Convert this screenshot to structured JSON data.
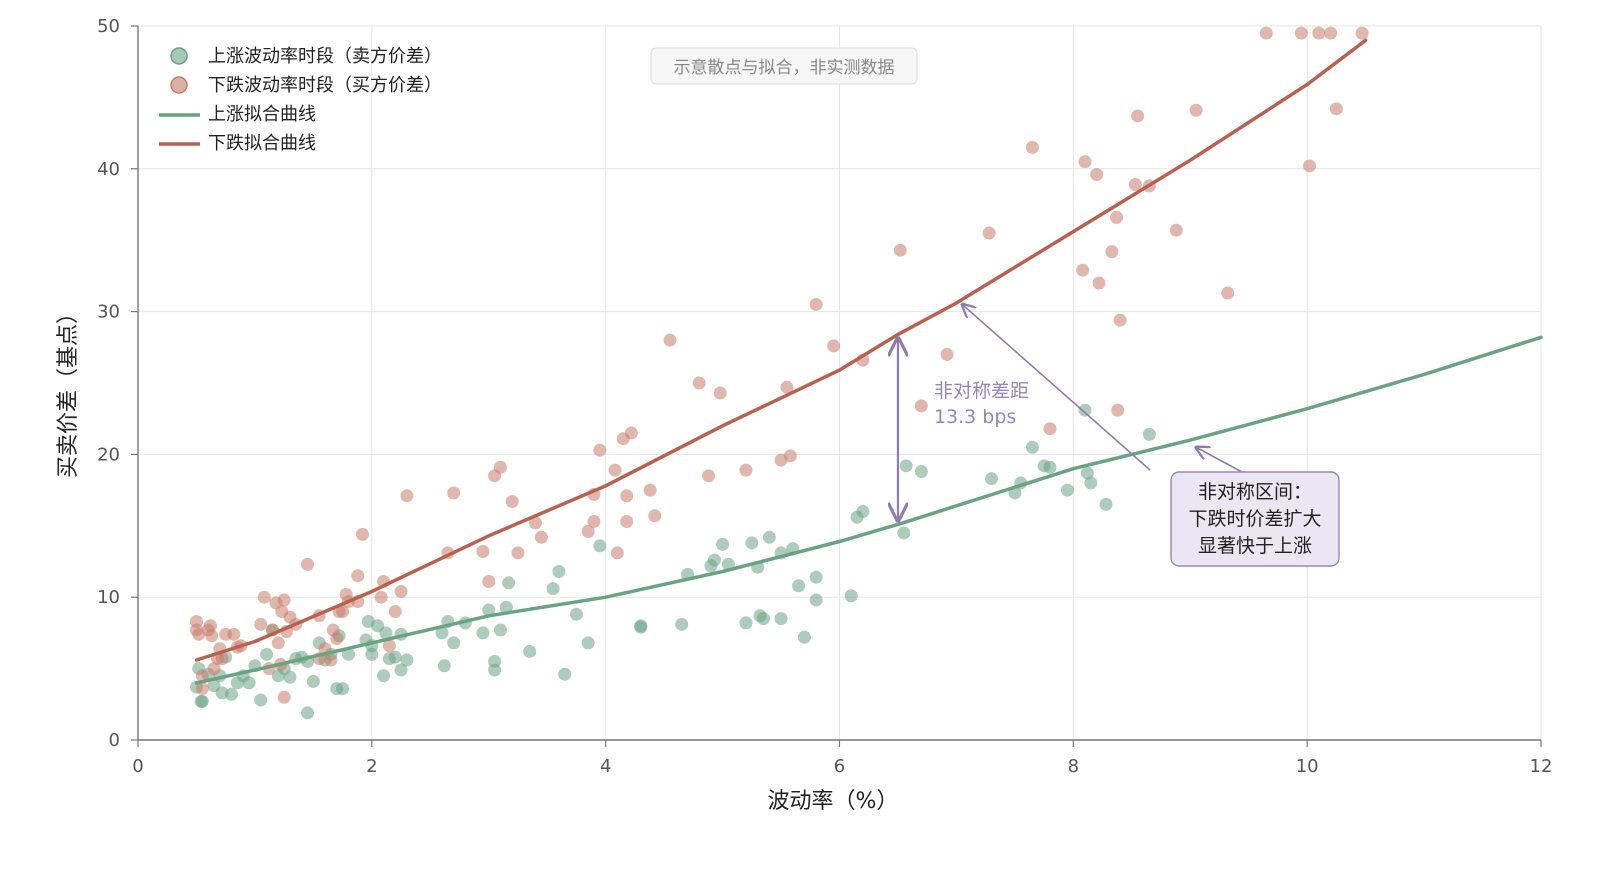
{
  "chart_data": {
    "type": "scatter",
    "title": "",
    "xlabel": "波动率（%）",
    "ylabel": "买卖价差（基点）",
    "xlim": [
      0,
      12
    ],
    "ylim": [
      0,
      50
    ],
    "x_ticks": [
      0,
      2,
      4,
      6,
      8,
      10,
      12
    ],
    "y_ticks": [
      0,
      10,
      20,
      30,
      40,
      50
    ],
    "grid": true,
    "legend_position": "top-left",
    "note": "示意散点与拟合，非实测数据",
    "series": [
      {
        "name": "上涨波动率时段（卖方价差）",
        "kind": "scatter",
        "color": "#6aa383",
        "points": [
          [
            0.5,
            3.7
          ],
          [
            0.52,
            5.0
          ],
          [
            0.54,
            2.7
          ],
          [
            0.55,
            2.7
          ],
          [
            0.6,
            4.6
          ],
          [
            0.65,
            3.8
          ],
          [
            0.7,
            4.5
          ],
          [
            0.72,
            3.3
          ],
          [
            0.75,
            5.8
          ],
          [
            0.8,
            3.2
          ],
          [
            0.85,
            4.0
          ],
          [
            0.9,
            4.5
          ],
          [
            0.95,
            4.0
          ],
          [
            1.0,
            5.2
          ],
          [
            1.05,
            2.8
          ],
          [
            1.1,
            6.0
          ],
          [
            1.15,
            7.7
          ],
          [
            1.2,
            4.5
          ],
          [
            1.25,
            5.0
          ],
          [
            1.3,
            4.4
          ],
          [
            1.35,
            5.7
          ],
          [
            1.4,
            5.8
          ],
          [
            1.45,
            1.9
          ],
          [
            1.45,
            5.5
          ],
          [
            1.5,
            4.1
          ],
          [
            1.55,
            6.8
          ],
          [
            1.6,
            5.6
          ],
          [
            1.65,
            6.0
          ],
          [
            1.7,
            3.6
          ],
          [
            1.72,
            7.3
          ],
          [
            1.75,
            3.6
          ],
          [
            1.8,
            6.0
          ],
          [
            1.95,
            7.0
          ],
          [
            1.97,
            8.3
          ],
          [
            2.0,
            6.0
          ],
          [
            2.0,
            6.6
          ],
          [
            2.05,
            8.0
          ],
          [
            2.1,
            4.5
          ],
          [
            2.12,
            7.5
          ],
          [
            2.15,
            5.7
          ],
          [
            2.2,
            5.8
          ],
          [
            2.25,
            7.4
          ],
          [
            2.25,
            4.9
          ],
          [
            2.3,
            5.6
          ],
          [
            2.6,
            7.5
          ],
          [
            2.62,
            5.2
          ],
          [
            2.65,
            8.3
          ],
          [
            2.7,
            6.8
          ],
          [
            2.8,
            8.2
          ],
          [
            2.95,
            7.5
          ],
          [
            3.0,
            9.1
          ],
          [
            3.05,
            5.5
          ],
          [
            3.05,
            4.9
          ],
          [
            3.1,
            7.7
          ],
          [
            3.15,
            9.3
          ],
          [
            3.17,
            11.0
          ],
          [
            3.35,
            6.2
          ],
          [
            3.55,
            10.6
          ],
          [
            3.6,
            11.8
          ],
          [
            3.65,
            4.6
          ],
          [
            3.75,
            8.8
          ],
          [
            3.85,
            6.8
          ],
          [
            3.95,
            13.6
          ],
          [
            4.3,
            8.0
          ],
          [
            4.3,
            7.9
          ],
          [
            4.65,
            8.1
          ],
          [
            4.7,
            11.6
          ],
          [
            4.9,
            12.2
          ],
          [
            4.93,
            12.6
          ],
          [
            5.0,
            13.7
          ],
          [
            5.05,
            12.3
          ],
          [
            5.2,
            8.2
          ],
          [
            5.25,
            13.8
          ],
          [
            5.3,
            12.1
          ],
          [
            5.32,
            8.7
          ],
          [
            5.35,
            8.5
          ],
          [
            5.4,
            14.2
          ],
          [
            5.5,
            13.1
          ],
          [
            5.5,
            8.5
          ],
          [
            5.6,
            13.4
          ],
          [
            5.65,
            10.8
          ],
          [
            5.7,
            7.2
          ],
          [
            5.8,
            11.4
          ],
          [
            5.8,
            9.8
          ],
          [
            6.1,
            10.1
          ],
          [
            6.15,
            15.6
          ],
          [
            6.2,
            16.0
          ],
          [
            6.55,
            14.5
          ],
          [
            6.57,
            19.2
          ],
          [
            6.7,
            18.8
          ],
          [
            7.3,
            18.3
          ],
          [
            7.5,
            17.3
          ],
          [
            7.55,
            18.0
          ],
          [
            7.65,
            20.5
          ],
          [
            7.75,
            19.2
          ],
          [
            7.8,
            19.1
          ],
          [
            7.95,
            17.5
          ],
          [
            8.1,
            23.1
          ],
          [
            8.12,
            18.7
          ],
          [
            8.15,
            18.0
          ],
          [
            8.28,
            16.5
          ],
          [
            8.65,
            21.4
          ]
        ]
      },
      {
        "name": "下跌波动率时段（买方价差）",
        "kind": "scatter",
        "color": "#c77b69",
        "points": [
          [
            0.5,
            8.3
          ],
          [
            0.5,
            7.7
          ],
          [
            0.52,
            7.4
          ],
          [
            0.55,
            3.6
          ],
          [
            0.55,
            4.5
          ],
          [
            0.6,
            7.7
          ],
          [
            0.62,
            8.0
          ],
          [
            0.63,
            7.3
          ],
          [
            0.65,
            5.0
          ],
          [
            0.68,
            5.7
          ],
          [
            0.7,
            6.4
          ],
          [
            0.72,
            5.7
          ],
          [
            0.75,
            7.4
          ],
          [
            0.82,
            7.4
          ],
          [
            0.85,
            6.5
          ],
          [
            0.88,
            6.6
          ],
          [
            1.05,
            8.1
          ],
          [
            1.08,
            10.0
          ],
          [
            1.12,
            5.0
          ],
          [
            1.15,
            7.7
          ],
          [
            1.18,
            9.6
          ],
          [
            1.2,
            6.8
          ],
          [
            1.22,
            5.3
          ],
          [
            1.23,
            9.0
          ],
          [
            1.25,
            9.8
          ],
          [
            1.27,
            7.6
          ],
          [
            1.3,
            8.6
          ],
          [
            1.25,
            3.0
          ],
          [
            1.35,
            8.1
          ],
          [
            1.45,
            12.3
          ],
          [
            1.55,
            5.7
          ],
          [
            1.55,
            8.7
          ],
          [
            1.6,
            6.4
          ],
          [
            1.65,
            5.6
          ],
          [
            1.67,
            7.7
          ],
          [
            1.7,
            7.1
          ],
          [
            1.72,
            9.0
          ],
          [
            1.75,
            9.0
          ],
          [
            1.78,
            10.2
          ],
          [
            1.8,
            9.7
          ],
          [
            1.88,
            11.5
          ],
          [
            1.88,
            9.7
          ],
          [
            1.92,
            14.4
          ],
          [
            2.08,
            10.0
          ],
          [
            2.1,
            11.1
          ],
          [
            2.15,
            6.6
          ],
          [
            2.2,
            9.0
          ],
          [
            2.25,
            10.4
          ],
          [
            2.3,
            17.1
          ],
          [
            2.65,
            13.1
          ],
          [
            2.7,
            17.3
          ],
          [
            2.95,
            13.2
          ],
          [
            3.0,
            11.1
          ],
          [
            3.05,
            18.5
          ],
          [
            3.1,
            19.1
          ],
          [
            3.2,
            16.7
          ],
          [
            3.25,
            13.1
          ],
          [
            3.4,
            15.2
          ],
          [
            3.45,
            14.2
          ],
          [
            3.85,
            14.6
          ],
          [
            3.9,
            17.2
          ],
          [
            3.9,
            15.3
          ],
          [
            3.95,
            20.3
          ],
          [
            4.08,
            18.9
          ],
          [
            4.1,
            13.1
          ],
          [
            4.15,
            21.1
          ],
          [
            4.18,
            17.1
          ],
          [
            4.18,
            15.3
          ],
          [
            4.22,
            21.5
          ],
          [
            4.38,
            17.5
          ],
          [
            4.42,
            15.7
          ],
          [
            4.55,
            28.0
          ],
          [
            4.8,
            25.0
          ],
          [
            4.88,
            18.5
          ],
          [
            4.98,
            24.3
          ],
          [
            5.2,
            18.9
          ],
          [
            5.5,
            19.6
          ],
          [
            5.55,
            24.7
          ],
          [
            5.58,
            19.9
          ],
          [
            5.8,
            30.5
          ],
          [
            5.95,
            27.6
          ],
          [
            6.2,
            26.6
          ],
          [
            6.52,
            34.3
          ],
          [
            6.7,
            23.4
          ],
          [
            6.92,
            27.0
          ],
          [
            7.28,
            35.5
          ],
          [
            7.8,
            21.8
          ],
          [
            7.65,
            41.5
          ],
          [
            8.08,
            32.9
          ],
          [
            8.1,
            40.5
          ],
          [
            8.2,
            39.6
          ],
          [
            8.22,
            32.0
          ],
          [
            8.33,
            34.2
          ],
          [
            8.37,
            36.6
          ],
          [
            8.38,
            23.1
          ],
          [
            8.4,
            29.4
          ],
          [
            8.53,
            38.9
          ],
          [
            8.55,
            43.7
          ],
          [
            8.65,
            38.8
          ],
          [
            8.88,
            35.7
          ],
          [
            9.05,
            44.1
          ],
          [
            9.32,
            31.3
          ],
          [
            9.65,
            49.5
          ],
          [
            9.95,
            49.5
          ],
          [
            10.02,
            40.2
          ],
          [
            10.1,
            49.5
          ],
          [
            10.2,
            49.5
          ],
          [
            10.25,
            44.2
          ],
          [
            10.47,
            49.5
          ]
        ]
      },
      {
        "name": "上涨拟合曲线",
        "kind": "line",
        "color": "#6aa383",
        "points": [
          [
            0.5,
            4.0
          ],
          [
            1,
            4.9
          ],
          [
            2,
            6.8
          ],
          [
            3,
            8.7
          ],
          [
            4,
            10.0
          ],
          [
            5,
            11.8
          ],
          [
            6,
            13.9
          ],
          [
            6.5,
            15.1
          ],
          [
            7,
            16.4
          ],
          [
            8,
            19.0
          ],
          [
            9,
            21.0
          ],
          [
            10,
            23.2
          ],
          [
            11,
            25.6
          ],
          [
            12,
            28.2
          ]
        ]
      },
      {
        "name": "下跌拟合曲线",
        "kind": "line",
        "color": "#b86150",
        "points": [
          [
            0.5,
            5.6
          ],
          [
            1,
            6.9
          ],
          [
            2,
            10.4
          ],
          [
            3,
            14.3
          ],
          [
            4,
            17.8
          ],
          [
            5,
            22.0
          ],
          [
            6,
            25.9
          ],
          [
            6.5,
            28.4
          ],
          [
            7,
            30.6
          ],
          [
            8,
            35.6
          ],
          [
            9,
            40.6
          ],
          [
            10,
            45.9
          ],
          [
            10.5,
            49.0
          ]
        ]
      }
    ],
    "annotations": [
      {
        "text_lines": [
          "非对称差距",
          "13.3 bps"
        ],
        "x": 6.5,
        "y_from": 15.1,
        "y_to": 28.4,
        "color": "#8f7ab0"
      },
      {
        "text_lines": [
          "非对称区间：",
          "下跌时价差扩大",
          "显著快于上涨"
        ],
        "arrows_to": [
          [
            7.05,
            30.5
          ],
          [
            9.05,
            20.5
          ]
        ],
        "color": "#8f7ab0"
      }
    ]
  }
}
